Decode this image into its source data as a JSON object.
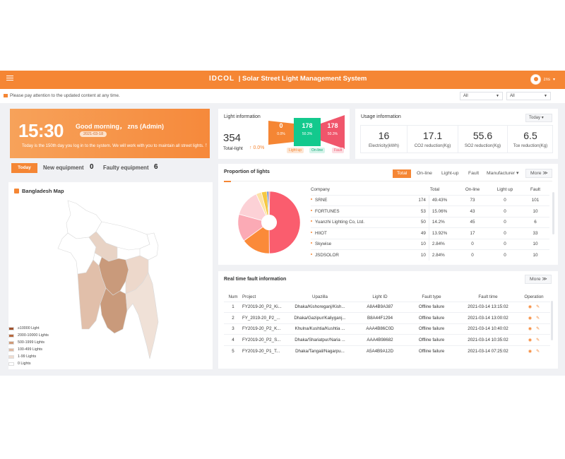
{
  "header": {
    "logo": "IDCOL",
    "title": "| Solar Street Light Management System",
    "username": "zns"
  },
  "notice": {
    "text": "Please pay attention to the updated content at any time.",
    "filter1": "All",
    "filter2": "All"
  },
  "greeting": {
    "time": "15:30",
    "message": "Good morning， zns (Admin)",
    "date": "2021-03-18",
    "body": "Today is the 150th day you log in to the system. We will work with you to maintain all street lights. ！"
  },
  "equipment": {
    "today_label": "Today",
    "new_label": "New equipment",
    "new_value": "0",
    "faulty_label": "Faulty equipment",
    "faulty_value": "6"
  },
  "map": {
    "title": "Bangladesh Map",
    "legend": [
      {
        "label": "≥10000 Light",
        "color": "#a0522d"
      },
      {
        "label": "2000-10000 Lights",
        "color": "#b8693f"
      },
      {
        "label": "500-1999 Lights",
        "color": "#cf9a78"
      },
      {
        "label": "100-499 Lights",
        "color": "#e0b9a1"
      },
      {
        "label": "1-99 Lights",
        "color": "#efdcd0"
      },
      {
        "label": "0 Lights",
        "color": "#ffffff"
      }
    ]
  },
  "light_info": {
    "title": "Light information",
    "total": "354",
    "total_label": "Total-light",
    "total_change": "0.0%",
    "lightup_value": "0",
    "lightup_pct": "0.0%",
    "online_value": "178",
    "online_pct": "50.3%",
    "fault_value": "178",
    "fault_pct": "50.3%",
    "lightup_label": "Light-up",
    "online_label": "On-line",
    "fault_label": "Fault"
  },
  "usage": {
    "title": "Usage information",
    "period": "Today",
    "items": [
      {
        "value": "16",
        "label": "Electricity(kWh)"
      },
      {
        "value": "17.1",
        "label": "CO2 reduction(Kg)"
      },
      {
        "value": "55.6",
        "label": "SO2 reduction(Kg)"
      },
      {
        "value": "6.5",
        "label": "Tce reduction(Kg)"
      }
    ]
  },
  "proportion": {
    "title": "Proportion of lights",
    "tabs": [
      "Total",
      "On-line",
      "Light-up",
      "Fault",
      "Manufacturer"
    ],
    "more": "More",
    "columns": [
      "Company",
      "Total",
      "On-line",
      "Light up",
      "Fault"
    ],
    "rows": [
      {
        "company": "SRNE",
        "total": "174",
        "pct": "49.43%",
        "online": "73",
        "lightup": "0",
        "fault": "101"
      },
      {
        "company": "FORTUNES",
        "total": "53",
        "pct": "15.06%",
        "online": "43",
        "lightup": "0",
        "fault": "10"
      },
      {
        "company": "Yuanzhi Lighting Co, Ltd.",
        "total": "50",
        "pct": "14.2%",
        "online": "45",
        "lightup": "0",
        "fault": "6"
      },
      {
        "company": "HIIOT",
        "total": "49",
        "pct": "13.92%",
        "online": "17",
        "lightup": "0",
        "fault": "33"
      },
      {
        "company": "Skywise",
        "total": "10",
        "pct": "2.84%",
        "online": "0",
        "lightup": "0",
        "fault": "10"
      },
      {
        "company": "JSDSOLOR",
        "total": "10",
        "pct": "2.84%",
        "online": "0",
        "lightup": "0",
        "fault": "10"
      }
    ],
    "pie_colors": [
      "#fa5d6e",
      "#fb8a39",
      "#fbaab5",
      "#fcd1d6",
      "#fde2a6",
      "#f5c842",
      "#4b7ccf"
    ]
  },
  "faults": {
    "title": "Real time fault information",
    "more": "More",
    "columns": [
      "Num",
      "Project",
      "Upazilla",
      "Light ID",
      "Fault type",
      "Fault time",
      "Operation"
    ],
    "rows": [
      {
        "num": "1",
        "project": "FY2019-20_P2_Ki...",
        "upazilla": "Dhaka/Kishoreganj/Kish...",
        "id": "A8A4B9A387",
        "type": "Offline failure",
        "time": "2021-03-14 13:15:02"
      },
      {
        "num": "2",
        "project": "FY_2019-20_P2_...",
        "upazilla": "Dhaka/Gazipur/Kaliyganj...",
        "id": "B8A44F1294",
        "type": "Offline failure",
        "time": "2021-03-14 13:00:02"
      },
      {
        "num": "3",
        "project": "FY2019-20_P2_K...",
        "upazilla": "Khulna/Kushtia/Kushtia ...",
        "id": "AAA4B86C0D",
        "type": "Offline failure",
        "time": "2021-03-14 10:40:02"
      },
      {
        "num": "4",
        "project": "FY2019-20_P2_S...",
        "upazilla": "Dhaka/Shariatpur/Naria ...",
        "id": "AAA4B98682",
        "type": "Offline failure",
        "time": "2021-03-14 10:35:02"
      },
      {
        "num": "5",
        "project": "FY2019-20_P1_T...",
        "upazilla": "Dhaka/Tangail/Nagarpu...",
        "id": "A5A4B9A12D",
        "type": "Offline failure",
        "time": "2021-03-14 07:25:02"
      }
    ]
  },
  "colors": {
    "accent": "#f58634",
    "online": "#13c98d",
    "fault": "#f0556b"
  }
}
